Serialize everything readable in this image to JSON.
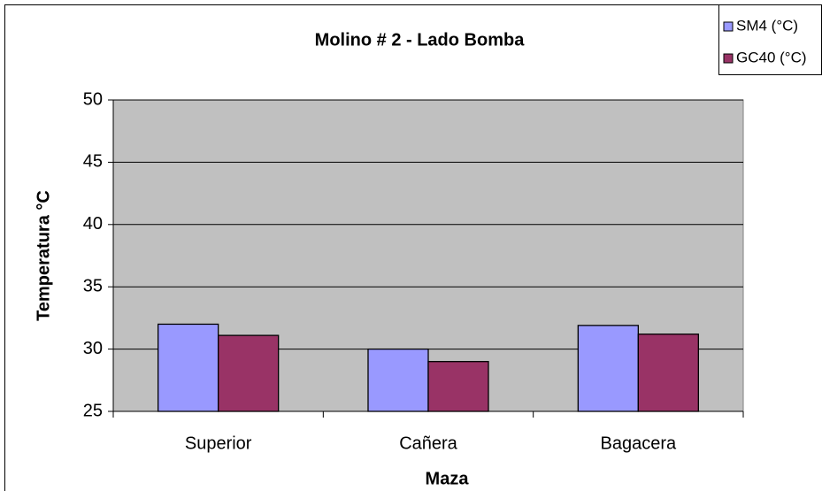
{
  "chart_data": {
    "type": "bar",
    "title": "Molino # 2  -  Lado Bomba",
    "xlabel": "Maza",
    "ylabel": "Temperatura °C",
    "categories": [
      "Superior",
      "Cañera",
      "Bagacera"
    ],
    "series": [
      {
        "name": "SM4 (°C)",
        "color": "#9999ff",
        "values": [
          32.0,
          30.0,
          31.9
        ]
      },
      {
        "name": "GC40 (°C)",
        "color": "#993366",
        "values": [
          31.1,
          29.0,
          31.2
        ]
      }
    ],
    "ylim": [
      25,
      50
    ],
    "yticks": [
      25,
      30,
      35,
      40,
      45,
      50
    ],
    "grid": true,
    "legend": "top-right"
  }
}
